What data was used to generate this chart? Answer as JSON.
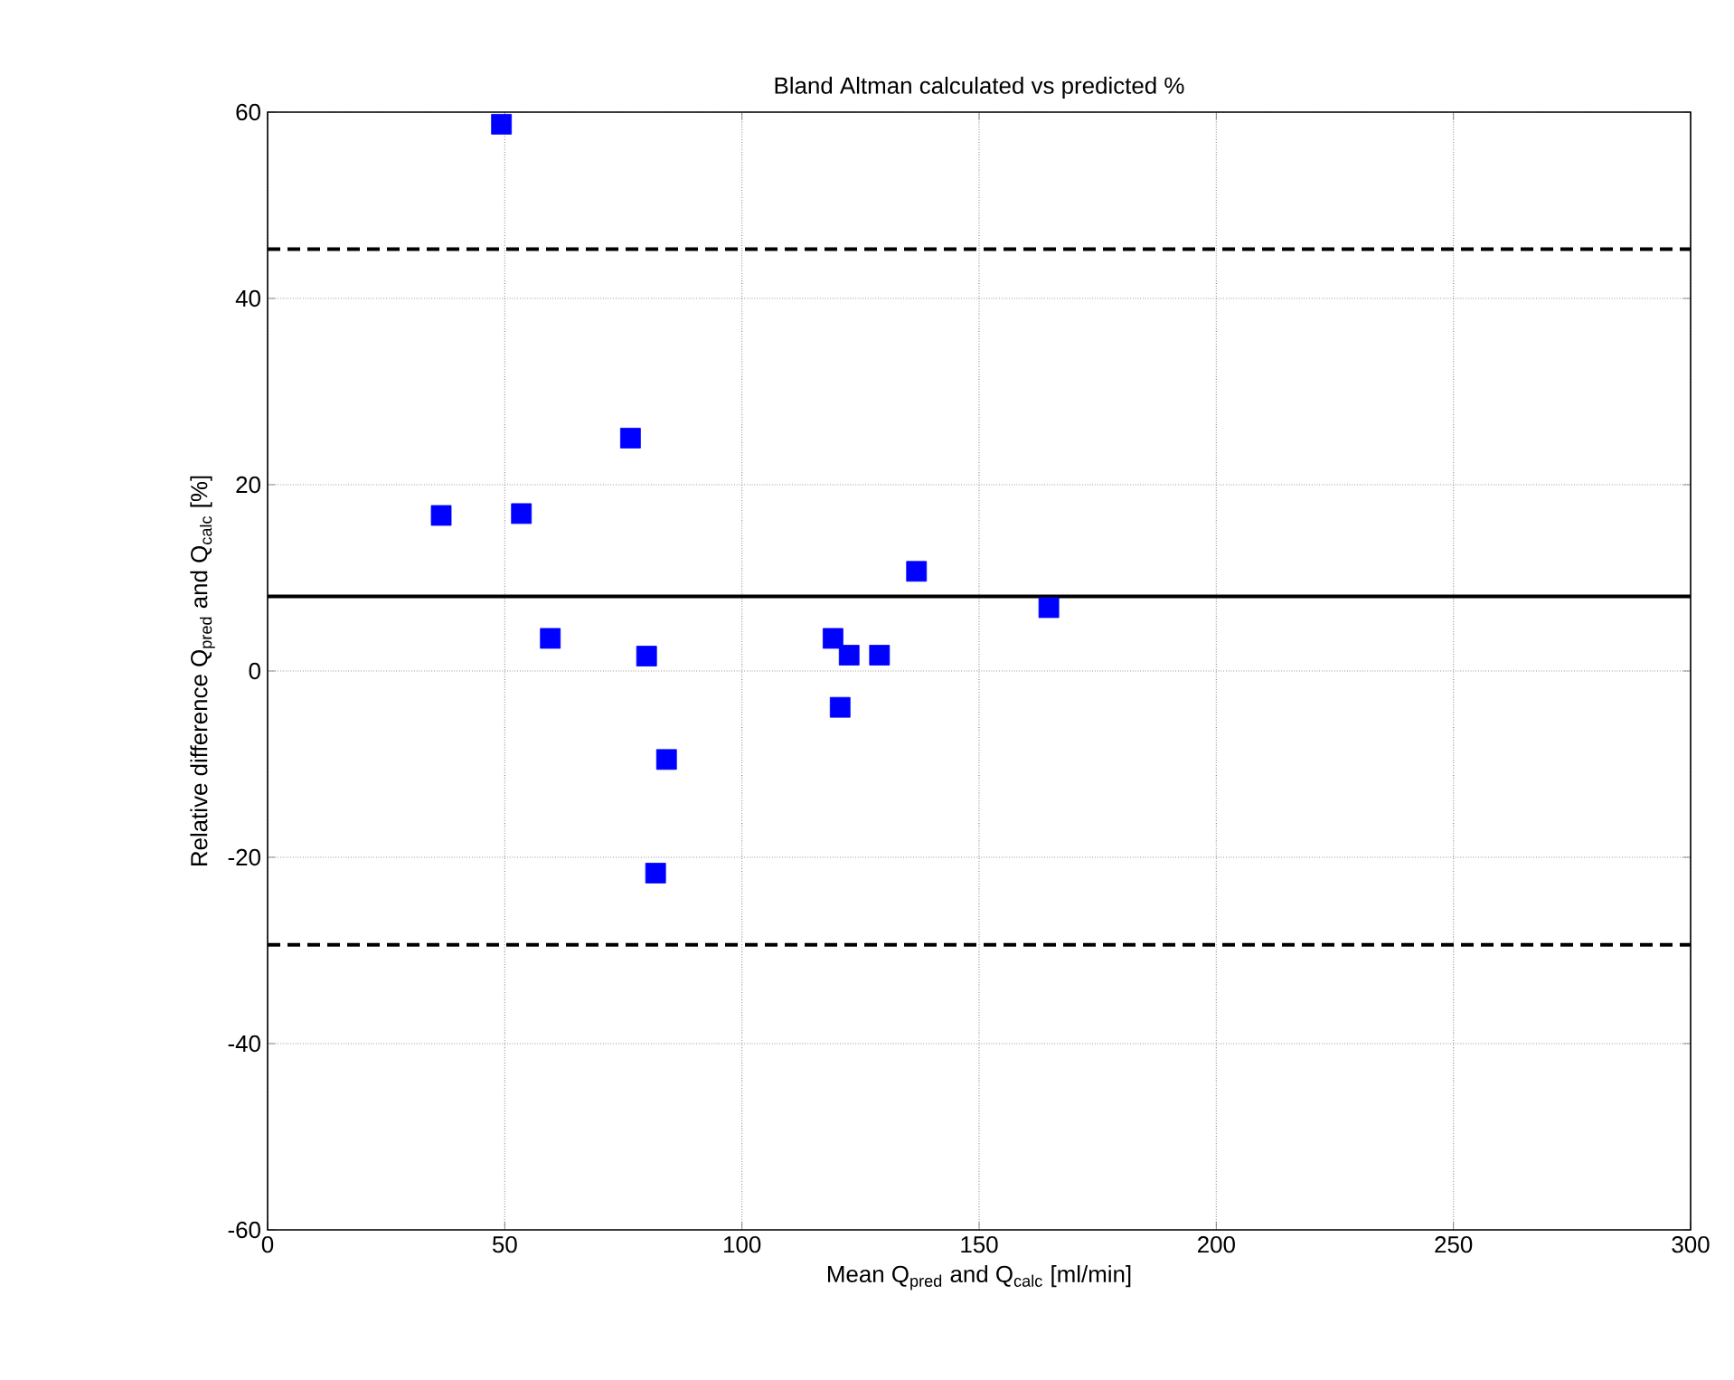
{
  "chart_data": {
    "type": "scatter",
    "title": "Bland Altman calculated vs predicted %",
    "xlabel": "Mean Q$_{pred}$ and Q$_{calc}$ [ml/min]",
    "ylabel": "Relative difference Q$_{pred}$ and Q$_{calc}$ [%]",
    "x": [
      49.3,
      76.5,
      36.6,
      53.5,
      59.6,
      79.9,
      84.1,
      81.8,
      119.2,
      122.6,
      129.0,
      120.7,
      136.8,
      164.7
    ],
    "series": [
      {
        "color": "#0000ff",
        "values": [
          58.7,
          25.0,
          16.7,
          16.9,
          3.5,
          1.6,
          -9.5,
          -21.7,
          3.5,
          1.7,
          1.7,
          -3.9,
          10.7,
          6.8
        ]
      }
    ],
    "xlim": [
      0,
      300
    ],
    "ylim": [
      -60,
      60
    ],
    "xticks": [
      0,
      50,
      100,
      150,
      200,
      250,
      300
    ],
    "yticks": [
      -60,
      -40,
      -20,
      0,
      20,
      40,
      60
    ],
    "grid": true,
    "marker": "square",
    "ref_lines": [
      {
        "axis": "y",
        "value": 8.0,
        "color": "#000000",
        "line_style": "solid"
      },
      {
        "axis": "y",
        "value": 45.3,
        "color": "#000000",
        "line_style": "dashed"
      },
      {
        "axis": "y",
        "value": -29.4,
        "color": "#000000",
        "line_style": "dashed"
      }
    ]
  }
}
